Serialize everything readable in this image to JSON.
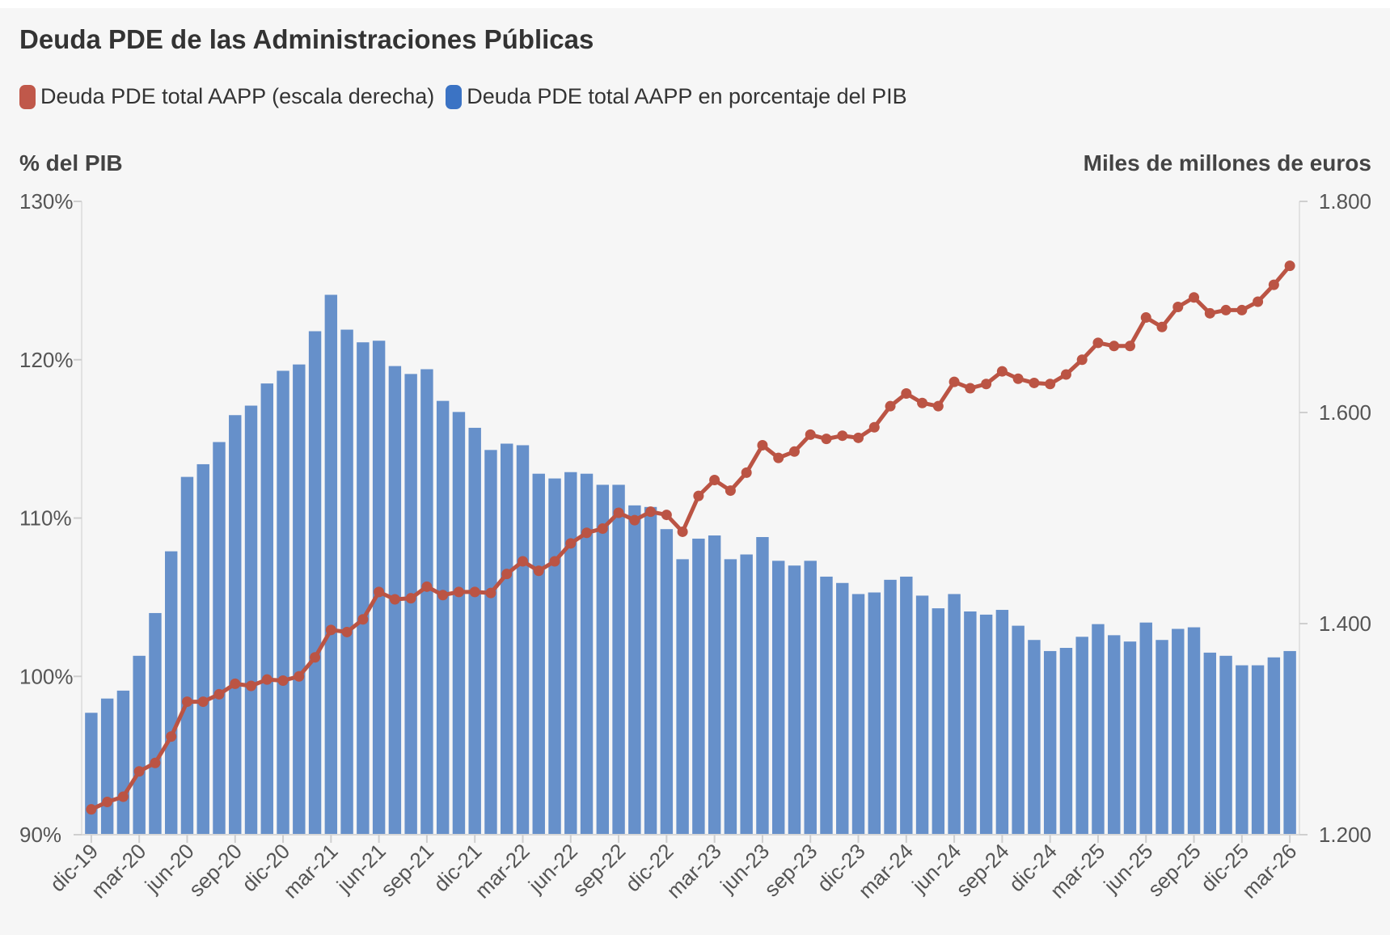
{
  "title": "Deuda PDE de las Administraciones Públicas",
  "legend": {
    "items": [
      {
        "label": "Deuda PDE total AAPP (escala derecha)",
        "color": "#c0584a"
      },
      {
        "label": "Deuda PDE total AAPP en porcentaje del PIB",
        "color": "#3b73c4"
      }
    ]
  },
  "axis": {
    "left_title": "% del PIB",
    "right_title": "Miles de millones de euros"
  },
  "chart_data": {
    "type": "bar",
    "title": "Deuda PDE de las Administraciones Públicas",
    "y_left": {
      "label": "% del PIB",
      "ylim": [
        90,
        130
      ],
      "ticks": [
        "90%",
        "100%",
        "110%",
        "120%",
        "130%"
      ],
      "tick_values": [
        90,
        100,
        110,
        120,
        130
      ]
    },
    "y_right": {
      "label": "Miles de millones de euros",
      "ylim": [
        1200,
        1800
      ],
      "ticks": [
        "1.200",
        "1.400",
        "1.600",
        "1.800"
      ],
      "tick_values": [
        1200,
        1400,
        1600,
        1800
      ]
    },
    "x_tick_labels": [
      "dic-19",
      "mar-20",
      "jun-20",
      "sep-20",
      "dic-20",
      "mar-21",
      "jun-21",
      "sep-21",
      "dic-21",
      "mar-22",
      "jun-22",
      "sep-22",
      "dic-22",
      "mar-23",
      "jun-23",
      "sep-23",
      "dic-23",
      "mar-24",
      "jun-24",
      "sep-24",
      "dic-24",
      "mar-25",
      "jun-25",
      "sep-25",
      "dic-25",
      "mar-26"
    ],
    "categories": [
      "dic-19",
      "ene-20",
      "feb-20",
      "mar-20",
      "abr-20",
      "may-20",
      "jun-20",
      "jul-20",
      "ago-20",
      "sep-20",
      "oct-20",
      "nov-20",
      "dic-20",
      "ene-21",
      "feb-21",
      "mar-21",
      "abr-21",
      "may-21",
      "jun-21",
      "jul-21",
      "ago-21",
      "sep-21",
      "oct-21",
      "nov-21",
      "dic-21",
      "ene-22",
      "feb-22",
      "mar-22",
      "abr-22",
      "may-22",
      "jun-22",
      "jul-22",
      "ago-22",
      "sep-22",
      "oct-22",
      "nov-22",
      "dic-22",
      "ene-23",
      "feb-23",
      "mar-23",
      "abr-23",
      "may-23",
      "jun-23",
      "jul-23",
      "ago-23",
      "sep-23",
      "oct-23",
      "nov-23",
      "dic-23",
      "ene-24",
      "feb-24",
      "mar-24",
      "abr-24",
      "may-24",
      "jun-24",
      "jul-24",
      "ago-24",
      "sep-24",
      "oct-24",
      "nov-24",
      "dic-24",
      "ene-25",
      "feb-25",
      "mar-25",
      "abr-25",
      "may-25",
      "jun-25",
      "jul-25",
      "ago-25",
      "sep-25",
      "oct-25",
      "nov-25",
      "dic-25",
      "ene-26",
      "feb-26",
      "mar-26"
    ],
    "series": [
      {
        "name": "Deuda PDE total AAPP en porcentaje del PIB",
        "type": "bar",
        "axis": "left",
        "color": "#6690ca",
        "values": [
          97.7,
          98.6,
          99.1,
          101.3,
          104.0,
          107.9,
          112.6,
          113.4,
          114.8,
          116.5,
          117.1,
          118.5,
          119.3,
          119.7,
          121.8,
          124.1,
          121.9,
          121.1,
          121.2,
          119.6,
          119.1,
          119.4,
          117.4,
          116.7,
          115.7,
          114.3,
          114.7,
          114.6,
          112.8,
          112.5,
          112.9,
          112.8,
          112.1,
          112.1,
          110.8,
          110.7,
          109.3,
          107.4,
          108.7,
          108.9,
          107.4,
          107.7,
          108.8,
          107.3,
          107.0,
          107.3,
          106.3,
          105.9,
          105.2,
          105.3,
          106.1,
          106.3,
          105.1,
          104.3,
          105.2,
          104.1,
          103.9,
          104.2,
          103.2,
          102.3,
          101.6,
          101.8,
          102.5,
          103.3,
          102.6,
          102.2,
          103.4,
          102.3,
          103.0,
          103.1,
          101.5,
          101.3,
          100.7,
          100.7,
          101.2,
          101.6
        ]
      },
      {
        "name": "Deuda PDE total AAPP (escala derecha)",
        "type": "line",
        "axis": "right",
        "color": "#bb5444",
        "values": [
          1224,
          1231,
          1236,
          1260,
          1268,
          1293,
          1326,
          1326,
          1333,
          1343,
          1341,
          1347,
          1346,
          1350,
          1368,
          1394,
          1392,
          1404,
          1430,
          1423,
          1424,
          1435,
          1427,
          1430,
          1430,
          1429,
          1447,
          1459,
          1450,
          1459,
          1476,
          1486,
          1490,
          1505,
          1498,
          1506,
          1503,
          1487,
          1521,
          1536,
          1526,
          1543,
          1569,
          1557,
          1563,
          1579,
          1575,
          1578,
          1576,
          1586,
          1606,
          1618,
          1609,
          1606,
          1629,
          1623,
          1627,
          1639,
          1632,
          1628,
          1627,
          1636,
          1650,
          1666,
          1663,
          1663,
          1690,
          1681,
          1700,
          1709,
          1694,
          1697,
          1697,
          1705,
          1721,
          1739
        ]
      }
    ],
    "grid": false,
    "legend_position": "top-left"
  }
}
